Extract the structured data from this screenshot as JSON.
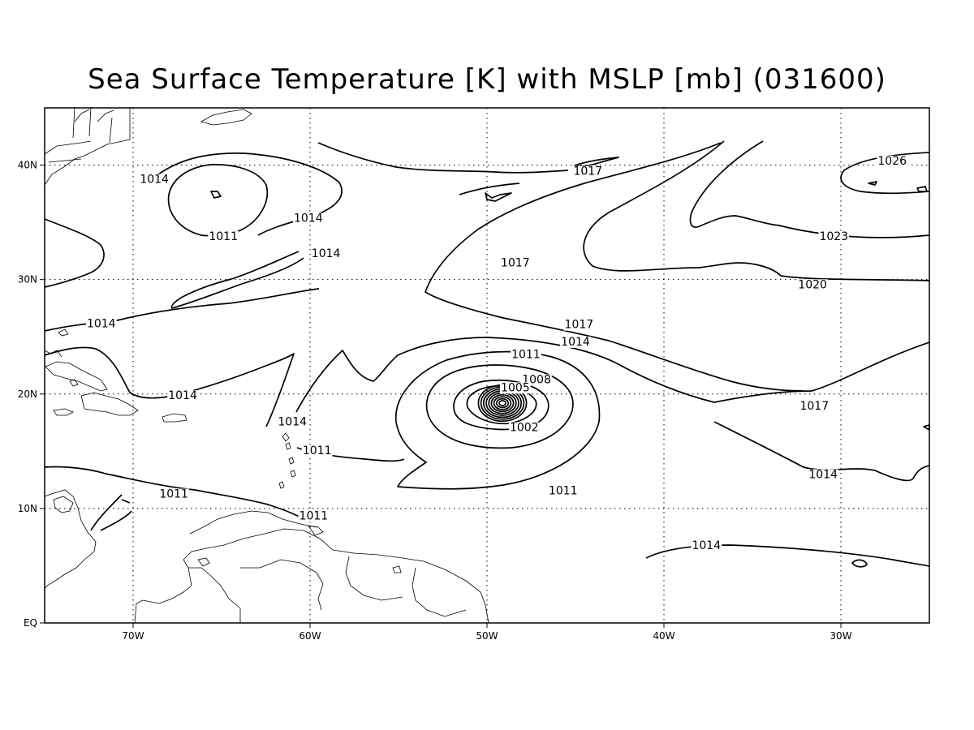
{
  "title": "Sea Surface Temperature [K] with MSLP [mb] (031600)",
  "map": {
    "lon_range_deg": [
      -75,
      -25
    ],
    "lat_range_deg": [
      0,
      45
    ],
    "grid": "dotted",
    "contour_color": "#000000",
    "lat_labels": [
      {
        "lat": 40,
        "label": "40N"
      },
      {
        "lat": 30,
        "label": "30N"
      },
      {
        "lat": 20,
        "label": "20N"
      },
      {
        "lat": 10,
        "label": "10N"
      },
      {
        "lat": 0,
        "label": "EQ"
      }
    ],
    "lon_labels": [
      {
        "lon": -70,
        "label": "70W"
      },
      {
        "lon": -60,
        "label": "60W"
      },
      {
        "lon": -50,
        "label": "50W"
      },
      {
        "lon": -40,
        "label": "40W"
      },
      {
        "lon": -30,
        "label": "30W"
      }
    ],
    "contour_labels": [
      {
        "lon": -68.8,
        "lat": 38.8,
        "text": "1014"
      },
      {
        "lon": -64.9,
        "lat": 33.8,
        "text": "1011"
      },
      {
        "lon": -60.1,
        "lat": 35.4,
        "text": "1014"
      },
      {
        "lon": -59.1,
        "lat": 32.3,
        "text": "1014"
      },
      {
        "lon": -71.8,
        "lat": 26.2,
        "text": "1014"
      },
      {
        "lon": -67.2,
        "lat": 19.9,
        "text": "1014"
      },
      {
        "lon": -61.0,
        "lat": 17.6,
        "text": "1014"
      },
      {
        "lon": -59.6,
        "lat": 15.1,
        "text": "1011"
      },
      {
        "lon": -67.7,
        "lat": 11.3,
        "text": "1011"
      },
      {
        "lon": -59.8,
        "lat": 9.4,
        "text": "1011"
      },
      {
        "lon": -48.4,
        "lat": 31.5,
        "text": "1017"
      },
      {
        "lon": -30.4,
        "lat": 33.8,
        "text": "1023"
      },
      {
        "lon": -31.6,
        "lat": 29.6,
        "text": "1020"
      },
      {
        "lon": -27.1,
        "lat": 40.4,
        "text": "1026"
      },
      {
        "lon": -44.3,
        "lat": 39.5,
        "text": "1017"
      },
      {
        "lon": -44.8,
        "lat": 26.1,
        "text": "1017"
      },
      {
        "lon": -45.0,
        "lat": 24.6,
        "text": "1014"
      },
      {
        "lon": -47.8,
        "lat": 23.5,
        "text": "1011"
      },
      {
        "lon": -47.2,
        "lat": 21.3,
        "text": "1008"
      },
      {
        "lon": -48.4,
        "lat": 20.6,
        "text": "1005"
      },
      {
        "lon": -47.9,
        "lat": 17.1,
        "text": "1002"
      },
      {
        "lon": -45.7,
        "lat": 11.6,
        "text": "1011"
      },
      {
        "lon": -31.5,
        "lat": 19.0,
        "text": "1017"
      },
      {
        "lon": -31.0,
        "lat": 13.0,
        "text": "1014"
      },
      {
        "lon": -37.6,
        "lat": 6.8,
        "text": "1014"
      }
    ]
  }
}
